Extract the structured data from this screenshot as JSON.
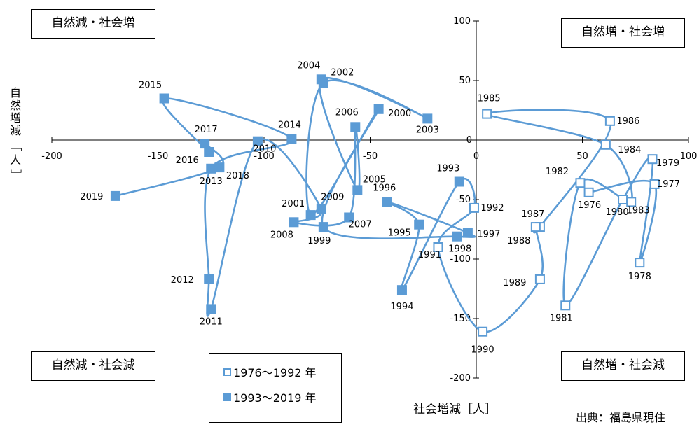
{
  "chart_data": {
    "type": "scatter",
    "xlabel": "社会増減［人］",
    "ylabel": "自然増減［人］",
    "xlim": [
      -200,
      100
    ],
    "ylim": [
      -200,
      100
    ],
    "xticks": [
      -200,
      -150,
      -100,
      -50,
      0,
      50,
      100
    ],
    "yticks": [
      -200,
      -150,
      -100,
      -50,
      0,
      50,
      100
    ],
    "grid": false,
    "legend_position": "bottom-left",
    "quadrants": {
      "top_left": "自然減・社会増",
      "top_right": "自然増・社会増",
      "bottom_left": "自然減・社会減",
      "bottom_right": "自然増・社会減"
    },
    "source_note": "出典：福島県現住",
    "series": [
      {
        "name": "1976〜1992 年",
        "marker": "hollow-square",
        "color": "#5B9BD5",
        "points": [
          {
            "label": "1976",
            "x": 53,
            "y": -44
          },
          {
            "label": "1977",
            "x": 84,
            "y": -37
          },
          {
            "label": "1978",
            "x": 77,
            "y": -103
          },
          {
            "label": "1979",
            "x": 83,
            "y": -16
          },
          {
            "label": "1980",
            "x": 69,
            "y": -50
          },
          {
            "label": "1981",
            "x": 42,
            "y": -139
          },
          {
            "label": "1982",
            "x": 49,
            "y": -36
          },
          {
            "label": "1983",
            "x": 73,
            "y": -52
          },
          {
            "label": "1984",
            "x": 61,
            "y": -4
          },
          {
            "label": "1985",
            "x": 5,
            "y": 22
          },
          {
            "label": "1986",
            "x": 63,
            "y": 16
          },
          {
            "label": "1987",
            "x": 30,
            "y": -73
          },
          {
            "label": "1988",
            "x": 28,
            "y": -73
          },
          {
            "label": "1989",
            "x": 30,
            "y": -117
          },
          {
            "label": "1990",
            "x": 3,
            "y": -161
          },
          {
            "label": "1991",
            "x": -18,
            "y": -90
          },
          {
            "label": "1992",
            "x": -1,
            "y": -57
          }
        ]
      },
      {
        "name": "1993〜2019 年",
        "marker": "filled-square",
        "color": "#5B9BD5",
        "points": [
          {
            "label": "1993",
            "x": -8,
            "y": -35
          },
          {
            "label": "1994",
            "x": -35,
            "y": -126
          },
          {
            "label": "1995",
            "x": -27,
            "y": -71
          },
          {
            "label": "1996",
            "x": -42,
            "y": -52
          },
          {
            "label": "1997",
            "x": -4,
            "y": -78
          },
          {
            "label": "1998",
            "x": -9,
            "y": -81
          },
          {
            "label": "1999",
            "x": -72,
            "y": -73
          },
          {
            "label": "2000",
            "x": -46,
            "y": 26
          },
          {
            "label": "2001",
            "x": -78,
            "y": -63
          },
          {
            "label": "2002",
            "x": -72,
            "y": 48
          },
          {
            "label": "2003",
            "x": -23,
            "y": 18
          },
          {
            "label": "2004",
            "x": -73,
            "y": 51
          },
          {
            "label": "2005",
            "x": -56,
            "y": -42
          },
          {
            "label": "2006",
            "x": -57,
            "y": 11
          },
          {
            "label": "2007",
            "x": -60,
            "y": -65
          },
          {
            "label": "2008",
            "x": -86,
            "y": -69
          },
          {
            "label": "2009",
            "x": -73,
            "y": -58
          },
          {
            "label": "2010",
            "x": -103,
            "y": -1
          },
          {
            "label": "2011",
            "x": -125,
            "y": -142
          },
          {
            "label": "2012",
            "x": -126,
            "y": -117
          },
          {
            "label": "2013",
            "x": -125,
            "y": -24
          },
          {
            "label": "2014",
            "x": -87,
            "y": 1
          },
          {
            "label": "2015",
            "x": -147,
            "y": 35
          },
          {
            "label": "2016",
            "x": -126,
            "y": -10
          },
          {
            "label": "2017",
            "x": -128,
            "y": -3
          },
          {
            "label": "2018",
            "x": -121,
            "y": -23
          },
          {
            "label": "2019",
            "x": -170,
            "y": -47
          }
        ]
      }
    ]
  }
}
